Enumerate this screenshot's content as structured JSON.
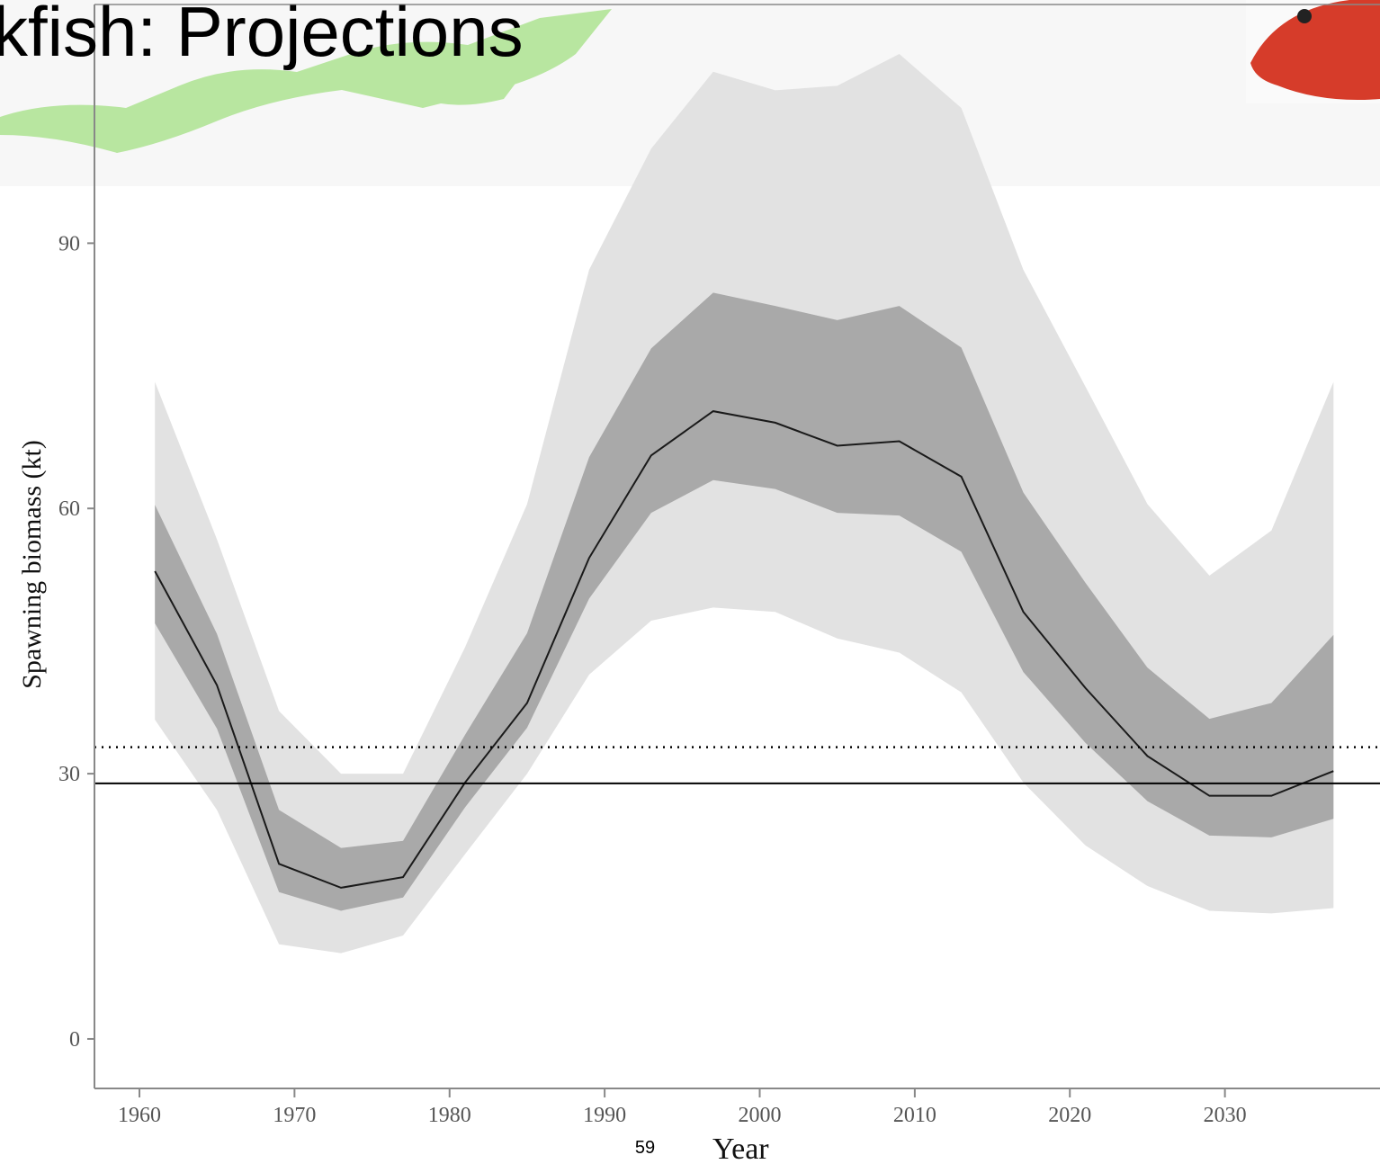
{
  "header": {
    "title": "kfish: Projections",
    "page_number": "59"
  },
  "chart_data": {
    "type": "fan",
    "x_label": "Year",
    "y_label": "Spawning biomass (kt)",
    "x": [
      1961,
      1965,
      1969,
      1973,
      1977,
      1981,
      1985,
      1989,
      1993,
      1997,
      2001,
      2005,
      2009,
      2013,
      2017,
      2021,
      2025,
      2029,
      2033,
      2037
    ],
    "median": {
      "color": "#1a1a1a",
      "values": [
        52.9,
        40,
        19.8,
        17.1,
        18.3,
        29,
        38,
        54.4,
        66,
        71,
        69.7,
        67.1,
        67.6,
        63.6,
        48.3,
        39.7,
        32,
        27.5,
        27.5,
        30.3
      ]
    },
    "bands": [
      {
        "color": "#e2e2e2",
        "upper": [
          74.3,
          56.5,
          37.1,
          30,
          30,
          44.3,
          60.5,
          87,
          100.7,
          109.4,
          107.3,
          107.8,
          111.4,
          105.3,
          87,
          73.8,
          60.5,
          52.4,
          57.5,
          74.3
        ],
        "lower": [
          36.1,
          25.9,
          10.7,
          9.7,
          11.7,
          20.9,
          30,
          41.2,
          47.3,
          48.8,
          48.3,
          45.3,
          43.7,
          39.2,
          29,
          21.9,
          17.3,
          14.5,
          14.2,
          14.8
        ]
      },
      {
        "color": "#a9a9a9",
        "upper": [
          60.4,
          45.8,
          25.9,
          21.6,
          22.4,
          34.4,
          45.9,
          65.8,
          78.1,
          84.4,
          82.9,
          81.3,
          82.9,
          78.2,
          61.8,
          51.6,
          42,
          36.2,
          38,
          45.7
        ],
        "lower": [
          47,
          35.1,
          16.6,
          14.5,
          16,
          26.2,
          35.2,
          49.8,
          59.5,
          63.2,
          62.2,
          59.5,
          59.2,
          55.1,
          41.5,
          33.5,
          26.9,
          23,
          22.8,
          24.9
        ]
      }
    ],
    "reference_lines": [
      {
        "value": 28.9,
        "style": "solid"
      },
      {
        "value": 33,
        "style": "dotted"
      }
    ],
    "xlim": [
      1957.1,
      2040
    ],
    "ylim": [
      -5.6,
      117
    ],
    "xticks": [
      1960,
      1970,
      1980,
      1990,
      2000,
      2010,
      2020,
      2030
    ],
    "yticks": [
      0,
      30,
      60,
      90
    ]
  }
}
